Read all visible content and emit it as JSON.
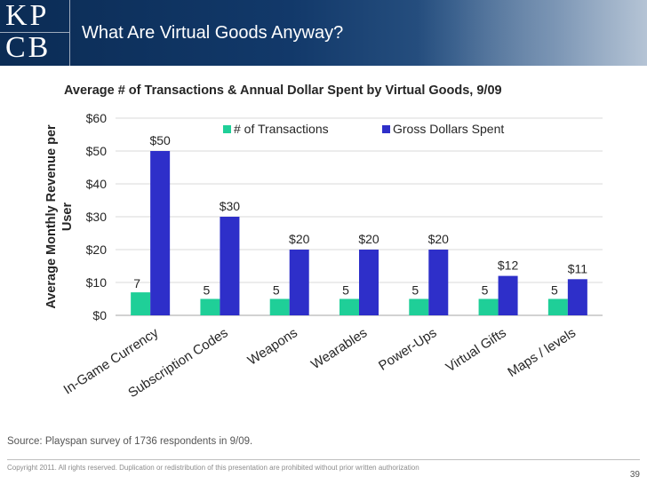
{
  "header": {
    "logo_line1": "KP",
    "logo_line2": "CB",
    "title": "What Are Virtual Goods Anyway?"
  },
  "chart_data": {
    "type": "bar",
    "title": "Average # of Transactions & Annual Dollar Spent by Virtual Goods, 9/09",
    "ylabel": "Average Monthly Revenue per User",
    "xlabel": "",
    "ylim": [
      0,
      60
    ],
    "yticks": [
      "$0",
      "$10",
      "$20",
      "$30",
      "$40",
      "$50",
      "$60"
    ],
    "ytick_values": [
      0,
      10,
      20,
      30,
      40,
      50,
      60
    ],
    "categories": [
      "In-Game Currency",
      "Subscription Codes",
      "Weapons",
      "Wearables",
      "Power-Ups",
      "Virtual Gifts",
      "Maps / levels"
    ],
    "grid": true,
    "legend_position": "top-right",
    "series": [
      {
        "name": "# of Transactions",
        "color": "#1fcf98",
        "values": [
          7,
          5,
          5,
          5,
          5,
          5,
          5
        ],
        "labels": [
          "7",
          "5",
          "5",
          "5",
          "5",
          "5",
          "5"
        ]
      },
      {
        "name": "Gross Dollars Spent",
        "color": "#2e2fc9",
        "values": [
          50,
          30,
          20,
          20,
          20,
          12,
          11
        ],
        "labels": [
          "$50",
          "$30",
          "$20",
          "$20",
          "$20",
          "$12",
          "$11"
        ]
      }
    ]
  },
  "source": "Source: Playspan survey of 1736 respondents in 9/09.",
  "copyright": "Copyright 2011. All rights reserved. Duplication or redistribution of this presentation are prohibited without prior written authorization",
  "page_number": "39"
}
